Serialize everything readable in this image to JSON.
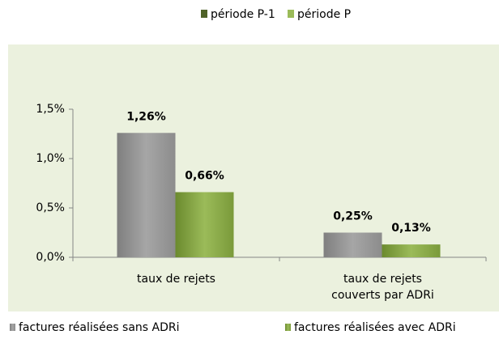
{
  "chart_data": {
    "type": "bar",
    "period_legend": [
      {
        "name": "période P-1",
        "color": "#4f6228"
      },
      {
        "name": "période P",
        "color": "#9bbb59"
      }
    ],
    "categories": [
      "taux de rejets",
      "taux de rejets\ncouverts par ADRi"
    ],
    "series": [
      {
        "name": "factures réalisées sans ADRi",
        "color": "#a6a6a6",
        "label_color": "#000000",
        "values": [
          1.26,
          0.25
        ],
        "value_labels": [
          "1,26%",
          "0,25%"
        ]
      },
      {
        "name": "factures réalisées avec ADRi",
        "color": "#9bbb59",
        "label_color": "#76923c",
        "values": [
          0.66,
          0.13
        ],
        "value_labels": [
          "0,66%",
          "0,13%"
        ]
      }
    ],
    "ylim": [
      0,
      1.5
    ],
    "yticks": [
      {
        "value": 0,
        "label": "0,0%"
      },
      {
        "value": 0.5,
        "label": "0,5%"
      },
      {
        "value": 1.0,
        "label": "1,0%"
      },
      {
        "value": 1.5,
        "label": "1,5%"
      }
    ]
  }
}
